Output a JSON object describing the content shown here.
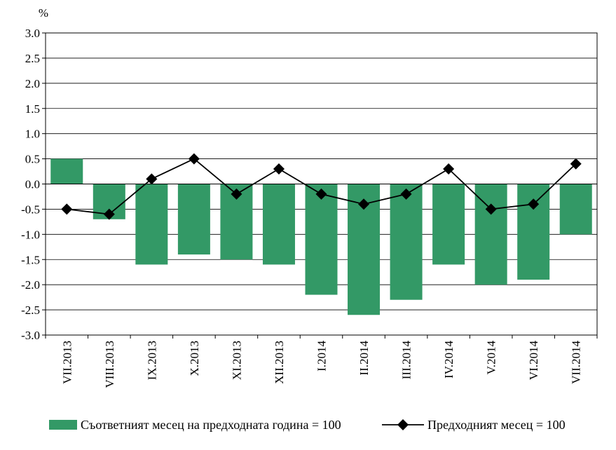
{
  "chart_data": {
    "type": "bar",
    "unit_label": "%",
    "categories": [
      "VII.2013",
      "VIII.2013",
      "IX.2013",
      "X.2013",
      "XI.2013",
      "XII.2013",
      "I.2014",
      "II.2014",
      "III.2014",
      "IV.2014",
      "V.2014",
      "VI.2014",
      "VII.2014"
    ],
    "ylim": [
      -3.0,
      3.0
    ],
    "ytick_step": 0.5,
    "ytick_labels": [
      "-3.0",
      "-2.5",
      "-2.0",
      "-1.5",
      "-1.0",
      "-0.5",
      "0.0",
      "0.5",
      "1.0",
      "1.5",
      "2.0",
      "2.5",
      "3.0"
    ],
    "grid": true,
    "legend_position": "bottom",
    "series": [
      {
        "name": "Съответният месец на предходната година = 100",
        "type": "bar",
        "color": "#339966",
        "values": [
          0.5,
          -0.7,
          -1.6,
          -1.4,
          -1.5,
          -1.6,
          -2.2,
          -2.6,
          -2.3,
          -1.6,
          -2.0,
          -1.9,
          -1.0
        ]
      },
      {
        "name": "Предходният месец = 100",
        "type": "line",
        "marker": "diamond",
        "color": "#000000",
        "values": [
          -0.5,
          -0.6,
          0.1,
          0.5,
          -0.2,
          0.3,
          -0.2,
          -0.4,
          -0.2,
          0.3,
          -0.5,
          -0.4,
          0.4
        ]
      }
    ]
  }
}
